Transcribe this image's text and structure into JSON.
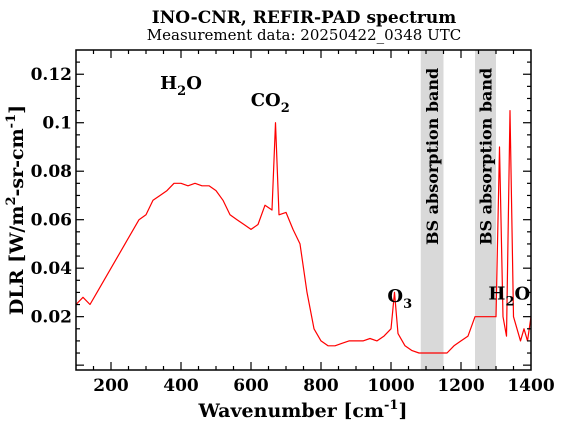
{
  "chart_data": {
    "type": "line",
    "title": "INO-CNR, REFIR-PAD spectrum",
    "subtitle": "Measurement data: 20250422_0348 UTC",
    "xlabel": {
      "base": "Wavenumber [cm",
      "sup": "-1",
      "tail": "]"
    },
    "ylabel": {
      "p1": "DLR [W/m",
      "s1": "2",
      "p2": "-sr-cm",
      "s2": "-1",
      "p3": "]"
    },
    "xlim": [
      100,
      1400
    ],
    "ylim": [
      -0.002,
      0.13
    ],
    "xticks": [
      200,
      400,
      600,
      800,
      1000,
      1200,
      1400
    ],
    "xtick_labels": [
      "200",
      "400",
      "600",
      "800",
      "1000",
      "1200",
      "1400"
    ],
    "yticks": [
      0.02,
      0.04,
      0.06,
      0.08,
      0.1,
      0.12
    ],
    "ytick_labels": [
      "0.02",
      "0.04",
      "0.06",
      "0.08",
      "0.1",
      "0.12"
    ],
    "grid": false,
    "series_color": "#ff0000",
    "band_color": "#d9d9d9",
    "shaded_bands": [
      {
        "x0": 1085,
        "x1": 1150,
        "label": "BS absorption band"
      },
      {
        "x0": 1240,
        "x1": 1300,
        "label": "BS absorption band"
      }
    ],
    "annotations": [
      {
        "id": "h2o-left",
        "base": "H",
        "sub": "2",
        "tail": "O",
        "x": 400,
        "y": 0.114
      },
      {
        "id": "co2",
        "base": "CO",
        "sub": "2",
        "tail": "",
        "x": 655,
        "y": 0.107
      },
      {
        "id": "o3",
        "base": "O",
        "sub": "3",
        "tail": "",
        "x": 1025,
        "y": 0.026
      },
      {
        "id": "h2o-right",
        "base": "H",
        "sub": "2",
        "tail": "O",
        "x": 1338,
        "y": 0.027
      }
    ],
    "series": [
      {
        "x": [
          100,
          120,
          140,
          160,
          180,
          200,
          220,
          240,
          260,
          280,
          300,
          320,
          340,
          360,
          380,
          400,
          420,
          440,
          460,
          480,
          500,
          520,
          540,
          560,
          580,
          600,
          620,
          640,
          660,
          670,
          680,
          700,
          720,
          740,
          760,
          780,
          800,
          820,
          840,
          860,
          880,
          900,
          920,
          940,
          960,
          980,
          1000,
          1010,
          1020,
          1040,
          1060,
          1080,
          1160,
          1180,
          1200,
          1220,
          1240,
          1300,
          1310,
          1320,
          1330,
          1340,
          1350,
          1360,
          1370,
          1380,
          1390,
          1400
        ],
        "y": [
          0.025,
          0.028,
          0.025,
          0.03,
          0.035,
          0.04,
          0.045,
          0.05,
          0.055,
          0.06,
          0.062,
          0.068,
          0.07,
          0.072,
          0.075,
          0.075,
          0.074,
          0.075,
          0.074,
          0.074,
          0.072,
          0.068,
          0.062,
          0.06,
          0.058,
          0.056,
          0.058,
          0.066,
          0.064,
          0.1,
          0.062,
          0.063,
          0.056,
          0.05,
          0.03,
          0.015,
          0.01,
          0.008,
          0.008,
          0.009,
          0.01,
          0.01,
          0.01,
          0.011,
          0.01,
          0.012,
          0.015,
          0.03,
          0.013,
          0.008,
          0.006,
          0.005,
          0.005,
          0.008,
          0.01,
          0.012,
          0.02,
          0.02,
          0.09,
          0.02,
          0.012,
          0.105,
          0.02,
          0.015,
          0.01,
          0.015,
          0.01,
          0.02
        ]
      }
    ]
  }
}
